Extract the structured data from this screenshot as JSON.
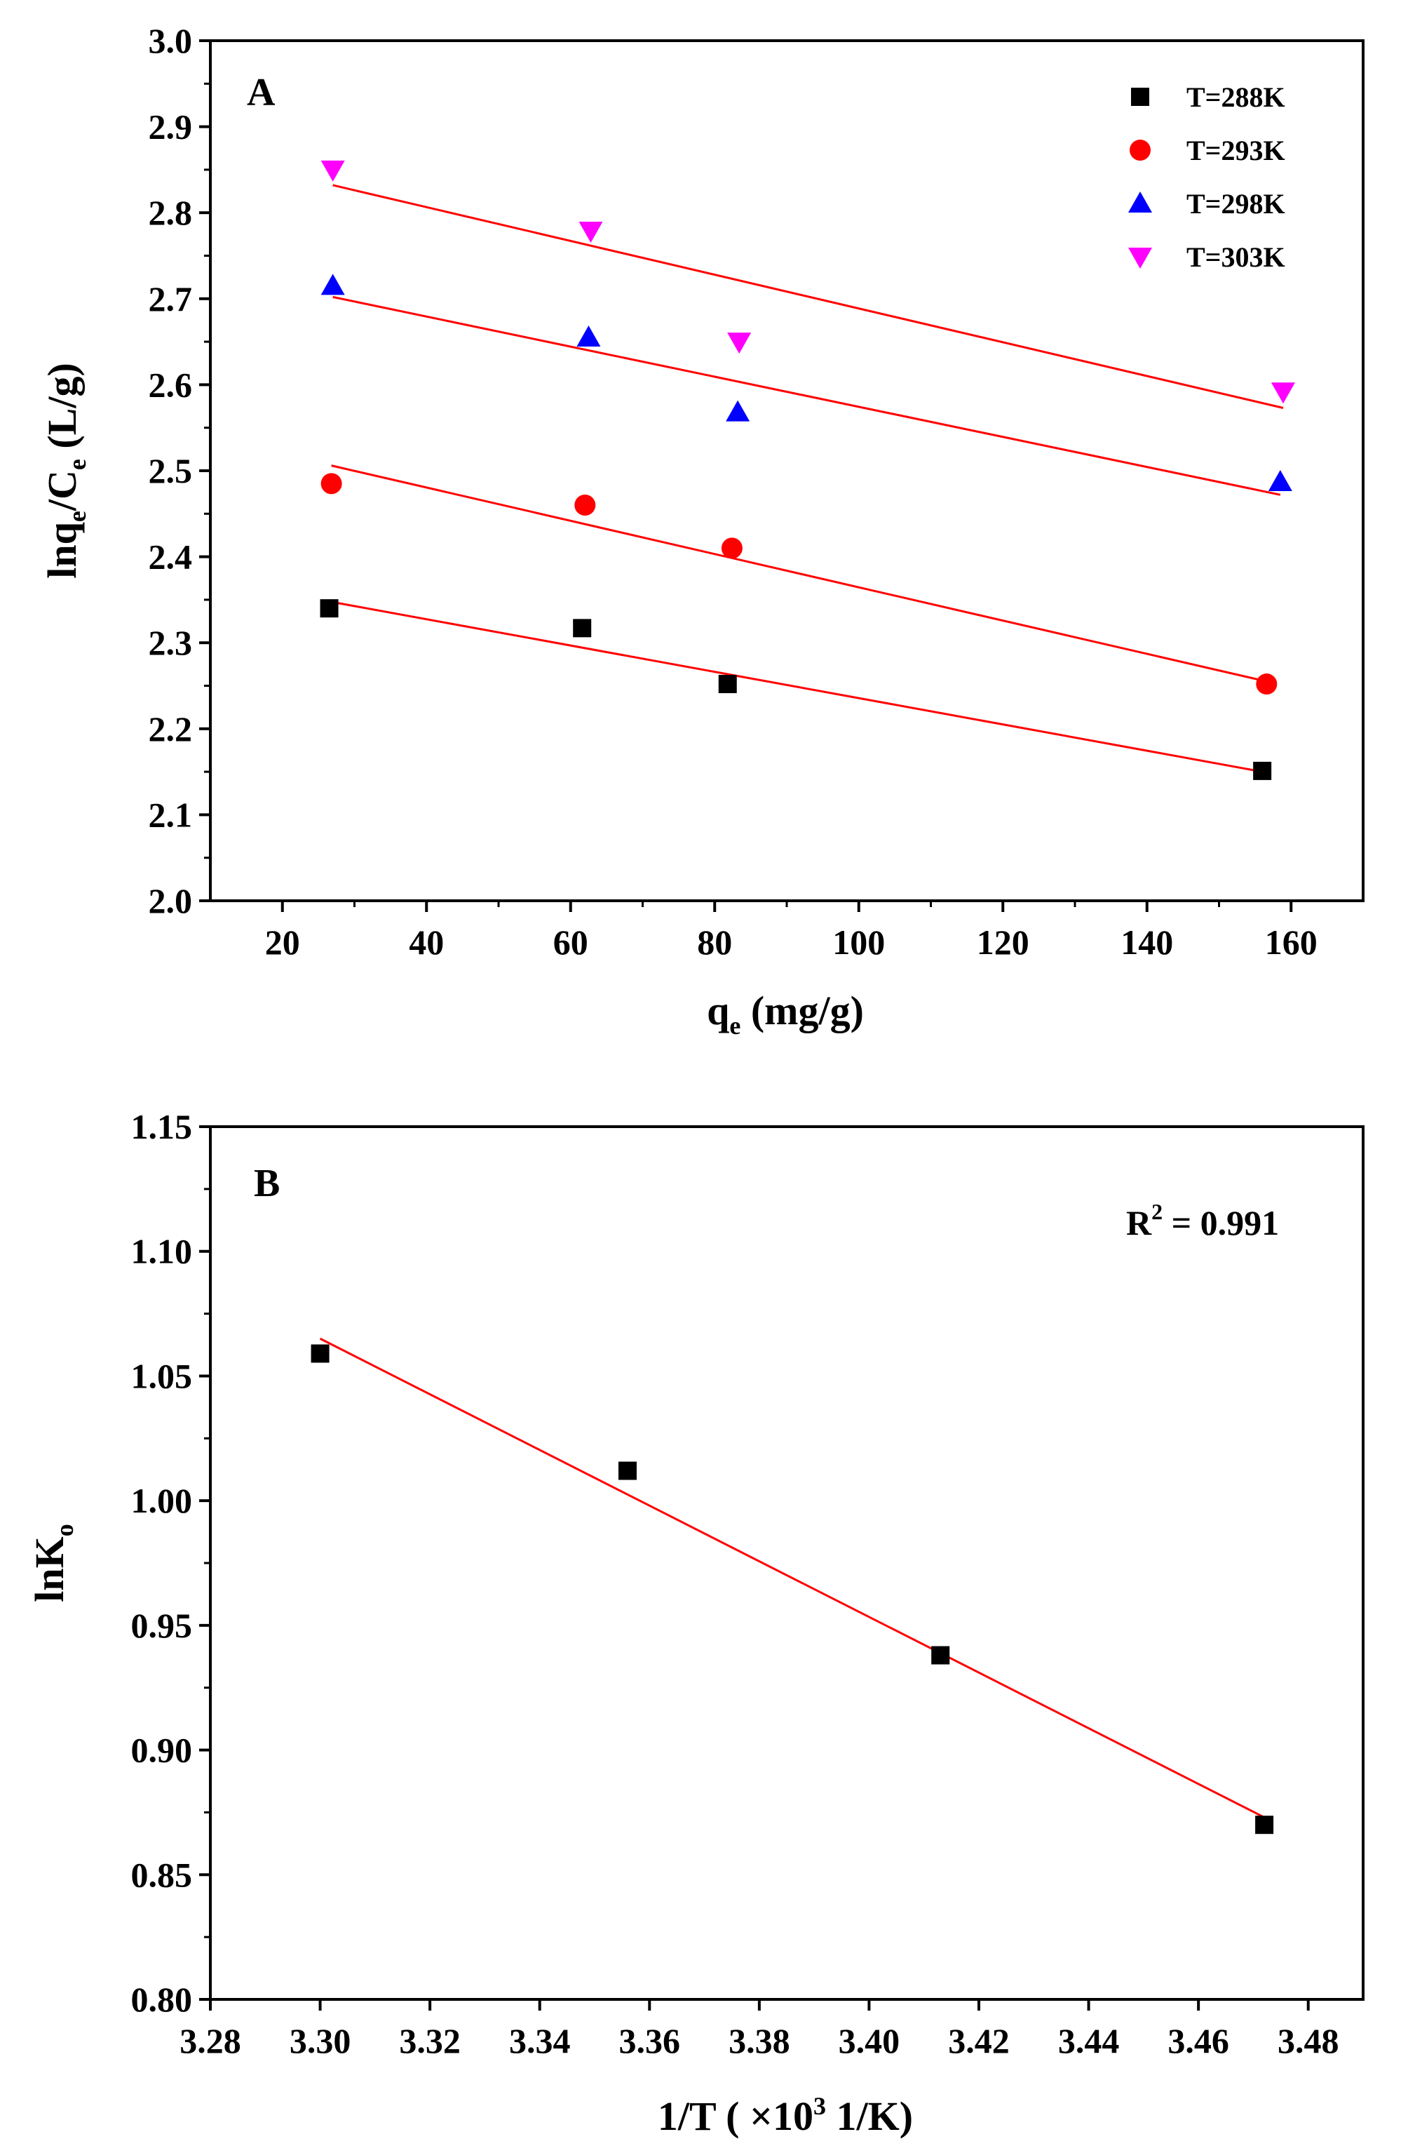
{
  "chart_data": [
    {
      "type": "scatter",
      "panel_label": "A",
      "title": "",
      "xlabel": "q",
      "xlabel_sub": "e",
      "xlabel_rest": " (mg/g)",
      "ylabel": "lnq",
      "ylabel_sub1": "e",
      "ylabel_mid": "/C",
      "ylabel_sub2": "e",
      "ylabel_rest": " (L/g)",
      "xlim": [
        10,
        170
      ],
      "ylim": [
        2.0,
        3.0
      ],
      "xticks": [
        20,
        40,
        60,
        80,
        100,
        120,
        140,
        160
      ],
      "xtick_labels": [
        "20",
        "40",
        "60",
        "80",
        "100",
        "120",
        "140",
        "160"
      ],
      "yticks": [
        2.0,
        2.1,
        2.2,
        2.3,
        2.4,
        2.5,
        2.6,
        2.7,
        2.8,
        2.9,
        3.0
      ],
      "ytick_labels": [
        "2.0",
        "2.1",
        "2.2",
        "2.3",
        "2.4",
        "2.5",
        "2.6",
        "2.7",
        "2.8",
        "2.9",
        "3.0"
      ],
      "grid": false,
      "legend_position": "top-right",
      "fit_color": "#ff0000",
      "series": [
        {
          "name": "T=288K",
          "marker": "square",
          "color": "#000000",
          "x": [
            26.5,
            61.6,
            81.8,
            156.0
          ],
          "y": [
            2.34,
            2.317,
            2.252,
            2.151
          ],
          "fit": {
            "x": [
              26.5,
              156.0
            ],
            "y": [
              2.348,
              2.15
            ]
          }
        },
        {
          "name": "T=293K",
          "marker": "circle",
          "color": "#ff0000",
          "x": [
            26.8,
            62.0,
            82.4,
            156.6
          ],
          "y": [
            2.485,
            2.46,
            2.41,
            2.252
          ],
          "fit": {
            "x": [
              26.8,
              156.6
            ],
            "y": [
              2.506,
              2.255
            ]
          }
        },
        {
          "name": "T=298K",
          "marker": "triangle-up",
          "color": "#0000ff",
          "x": [
            27.0,
            62.5,
            83.2,
            158.5
          ],
          "y": [
            2.715,
            2.655,
            2.568,
            2.487
          ],
          "fit": {
            "x": [
              27.0,
              158.5
            ],
            "y": [
              2.702,
              2.472
            ]
          }
        },
        {
          "name": "T=303K",
          "marker": "triangle-down",
          "color": "#ff00ff",
          "x": [
            27.0,
            62.8,
            83.4,
            158.9
          ],
          "y": [
            2.85,
            2.779,
            2.65,
            2.592
          ],
          "fit": {
            "x": [
              27.0,
              158.9
            ],
            "y": [
              2.832,
              2.573
            ]
          }
        }
      ]
    },
    {
      "type": "scatter",
      "panel_label": "B",
      "title": "",
      "xlabel": "1/T ( ×10",
      "xlabel_sup": "3",
      "xlabel_rest": " 1/K)",
      "ylabel": "lnK",
      "ylabel_sub": "o",
      "xlim": [
        3.28,
        3.49
      ],
      "ylim": [
        0.8,
        1.15
      ],
      "xticks": [
        3.28,
        3.3,
        3.32,
        3.34,
        3.36,
        3.38,
        3.4,
        3.42,
        3.44,
        3.46,
        3.48
      ],
      "xtick_labels": [
        "3.28",
        "3.30",
        "3.32",
        "3.34",
        "3.36",
        "3.38",
        "3.40",
        "3.42",
        "3.44",
        "3.46",
        "3.48"
      ],
      "yticks": [
        0.8,
        0.85,
        0.9,
        0.95,
        1.0,
        1.05,
        1.1,
        1.15
      ],
      "ytick_labels": [
        "0.80",
        "0.85",
        "0.90",
        "0.95",
        "1.00",
        "1.05",
        "1.10",
        "1.15"
      ],
      "grid": false,
      "annotation": {
        "prefix": "R",
        "sup": "2",
        "rest": " = 0.991"
      },
      "fit_color": "#ff0000",
      "series": [
        {
          "name": "lnKo",
          "marker": "square",
          "color": "#000000",
          "x": [
            3.3,
            3.356,
            3.413,
            3.472
          ],
          "y": [
            1.059,
            1.012,
            0.938,
            0.87
          ],
          "fit": {
            "x": [
              3.3,
              3.472
            ],
            "y": [
              1.065,
              0.873
            ]
          }
        }
      ]
    }
  ]
}
